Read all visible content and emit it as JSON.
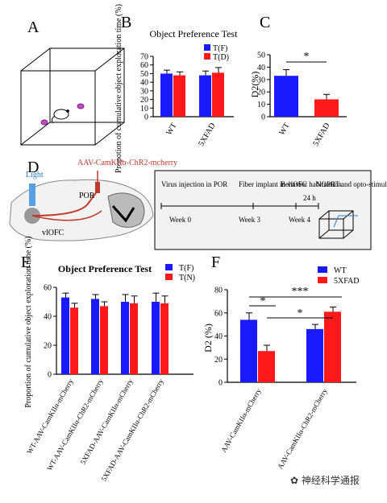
{
  "panels": {
    "A": {
      "letter": "A"
    },
    "B": {
      "letter": "B",
      "title": "Object Preference Test",
      "ylabel": "Propotion of cumulative object exploration time (%)",
      "legend": [
        "T(F)",
        "T(D)"
      ]
    },
    "C": {
      "letter": "C",
      "ylabel": "D2(%)",
      "sig": "*"
    },
    "D": {
      "letter": "D",
      "virus": "AAV-CamKIIα-ChR2-mcherry",
      "light": "Light",
      "por": "POR",
      "vlofc": "vlOFC",
      "timeline": {
        "steps": [
          {
            "label": "Virus injection in POR",
            "week": "Week 0"
          },
          {
            "label": "Fiber implant in vlOFC",
            "week": "Week 3"
          },
          {
            "label": "Behavior habituation",
            "week": "Week 4"
          },
          {
            "label": "NOPRT and opto-stimulation",
            "week": ""
          }
        ],
        "interval": "24 h"
      }
    },
    "E": {
      "letter": "E",
      "title": "Object Preference Test",
      "ylabel": "Proportion of cumulative object exploration time (%)",
      "legend": [
        "T(F)",
        "T(N)"
      ]
    },
    "F": {
      "letter": "F",
      "ylabel": "D2 (%)",
      "legend": [
        "WT",
        "5XFAD"
      ],
      "sig": [
        "*",
        "***",
        "*"
      ]
    }
  },
  "watermark": "神经科学通报",
  "colors": {
    "blue": "#1a1aff",
    "red": "#ff1a1a"
  },
  "chart_data": [
    {
      "panel": "B",
      "type": "bar",
      "title": "Object Preference Test",
      "categories": [
        "WT",
        "5XFAD"
      ],
      "series": [
        {
          "name": "T(F)",
          "values": [
            50,
            48
          ]
        },
        {
          "name": "T(D)",
          "values": [
            48,
            51
          ]
        }
      ],
      "errors": [
        [
          4,
          5
        ],
        [
          4,
          6
        ]
      ],
      "ylabel": "Propotion of cumulative object exploration time (%)",
      "ylim": [
        0,
        70
      ],
      "yticks": [
        0,
        10,
        20,
        30,
        40,
        50,
        60,
        70
      ]
    },
    {
      "panel": "C",
      "type": "bar",
      "categories": [
        "WT",
        "5XFAD"
      ],
      "values": [
        33,
        14
      ],
      "errors": [
        5,
        4
      ],
      "ylabel": "D2(%)",
      "ylim": [
        0,
        50
      ],
      "yticks": [
        0,
        10,
        20,
        30,
        40,
        50
      ]
    },
    {
      "panel": "E",
      "type": "bar",
      "title": "Object Preference Test",
      "categories": [
        "WT-AAV-CamKIIα-mCherry",
        "WT-AAV-CamKIIα-ChR2-mCherry",
        "5XFAD-AAV-CamKIIα-mCherry",
        "5XFAD-AAV-CamKIIα-ChR2-mCherry"
      ],
      "series": [
        {
          "name": "T(F)",
          "values": [
            53,
            52,
            50,
            50
          ]
        },
        {
          "name": "T(N)",
          "values": [
            46,
            47,
            49,
            49
          ]
        }
      ],
      "errors": [
        [
          3,
          3,
          5,
          6
        ],
        [
          3,
          3,
          5,
          5
        ]
      ],
      "ylabel": "Proportion of cumulative object exploration time (%)",
      "ylim": [
        0,
        60
      ],
      "yticks": [
        0,
        20,
        40,
        60
      ]
    },
    {
      "panel": "F",
      "type": "bar",
      "categories": [
        "AAV-CamKIIα-mCherry",
        "AAV-CamKIIα-ChR2-mCherry"
      ],
      "series": [
        {
          "name": "WT",
          "values": [
            54,
            46
          ]
        },
        {
          "name": "5XFAD",
          "values": [
            27,
            61
          ]
        }
      ],
      "errors": [
        [
          6,
          4
        ],
        [
          5,
          4
        ]
      ],
      "ylabel": "D2 (%)",
      "ylim": [
        0,
        80
      ],
      "yticks": [
        0,
        20,
        40,
        60,
        80
      ]
    }
  ]
}
